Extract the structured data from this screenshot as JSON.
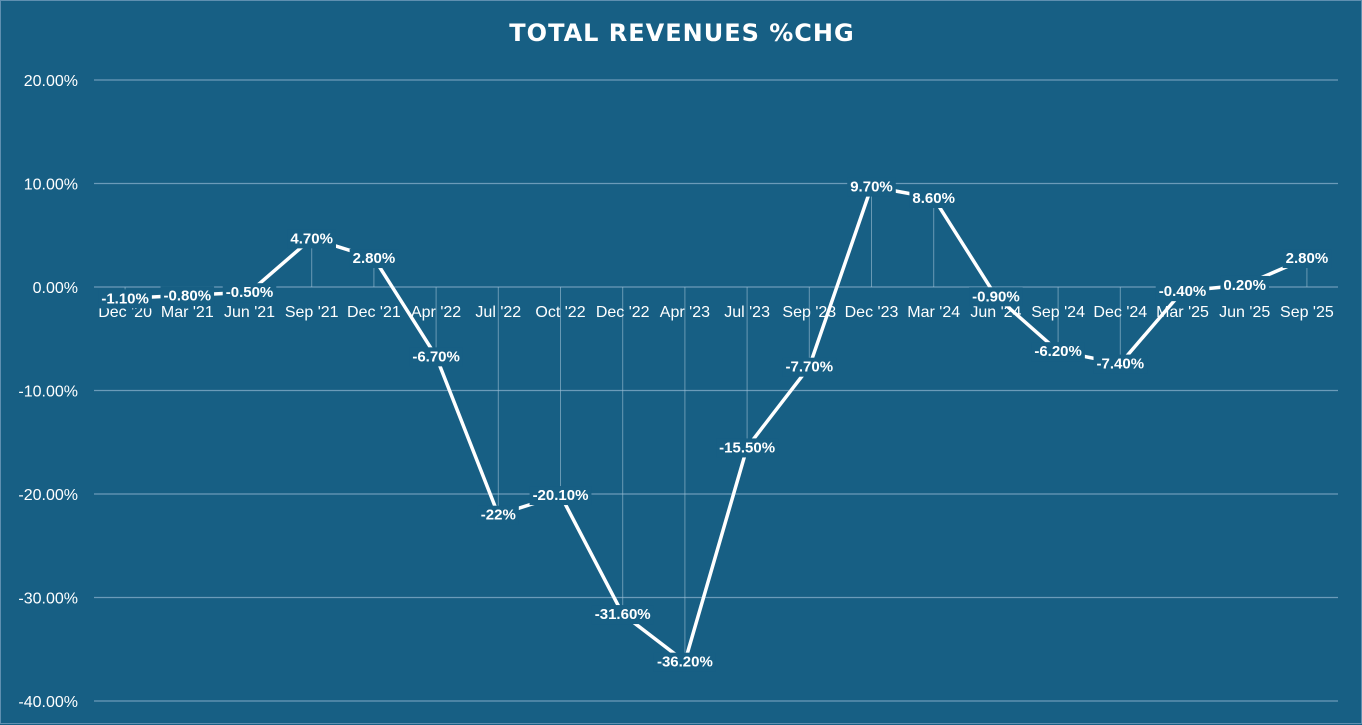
{
  "chart_data": {
    "type": "line",
    "title": "TOTAL REVENUES %CHG",
    "xlabel": "",
    "ylabel": "",
    "ylim": [
      -40,
      20
    ],
    "yticks": [
      20,
      10,
      0,
      -10,
      -20,
      -30,
      -40
    ],
    "ytick_labels": [
      "20.00%",
      "10.00%",
      "0.00%",
      "-10.00%",
      "-20.00%",
      "-30.00%",
      "-40.00%"
    ],
    "grid": true,
    "legend": "none",
    "categories": [
      "Dec '20",
      "Mar '21",
      "Jun '21",
      "Sep '21",
      "Dec '21",
      "Apr '22",
      "Jul '22",
      "Oct '22",
      "Dec '22",
      "Apr '23",
      "Jul '23",
      "Sep '23",
      "Dec '23",
      "Mar '24",
      "Jun '24",
      "Sep '24",
      "Dec '24",
      "Mar '25",
      "Jun '25",
      "Sep '25"
    ],
    "values": [
      -1.1,
      -0.8,
      -0.5,
      4.7,
      2.8,
      -6.7,
      -22,
      -20.1,
      -31.6,
      -36.2,
      -15.5,
      -7.7,
      9.7,
      8.6,
      -0.9,
      -6.2,
      -7.4,
      -0.4,
      0.2,
      2.8
    ],
    "data_labels": [
      "-1.10%",
      "-0.80%",
      "-0.50%",
      "4.70%",
      "2.80%",
      "-6.70%",
      "-22%",
      "-20.10%",
      "-31.60%",
      "-36.20%",
      "-15.50%",
      "-7.70%",
      "9.70%",
      "8.60%",
      "-0.90%",
      "-6.20%",
      "-7.40%",
      "-0.40%",
      "0.20%",
      "2.80%"
    ],
    "colors": {
      "background": "#175f84",
      "line": "#ffffff",
      "grid": "#6b9bb9",
      "text": "#ffffff"
    }
  }
}
